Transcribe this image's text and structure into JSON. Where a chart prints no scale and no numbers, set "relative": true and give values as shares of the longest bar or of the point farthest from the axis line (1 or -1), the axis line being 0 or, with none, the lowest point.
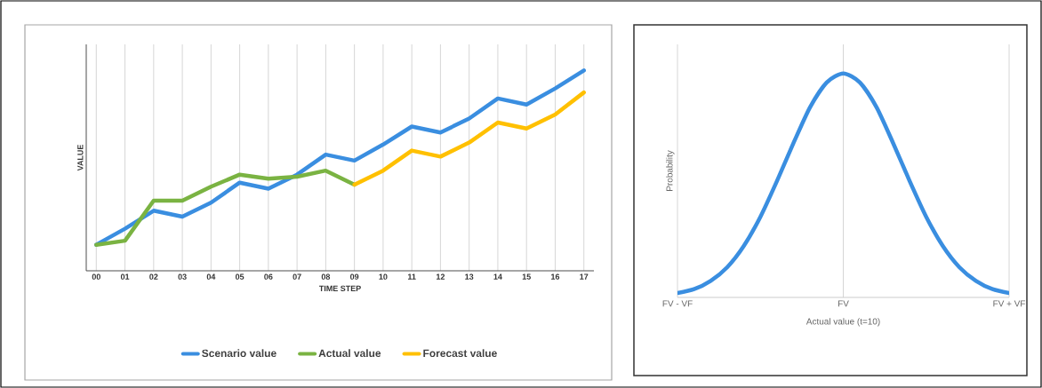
{
  "chart_data": [
    {
      "type": "line",
      "xlabel": "TIME STEP",
      "ylabel": "VALUE",
      "relative": true,
      "grid": "x",
      "legend": "bottom",
      "categories": [
        "00",
        "01",
        "02",
        "03",
        "04",
        "05",
        "06",
        "07",
        "08",
        "09",
        "10",
        "11",
        "12",
        "13",
        "14",
        "15",
        "16",
        "17"
      ],
      "series": [
        {
          "name": "Scenario value",
          "color": "#3a8ee0",
          "values": [
            0.13,
            0.21,
            0.3,
            0.27,
            0.34,
            0.44,
            0.41,
            0.48,
            0.58,
            0.55,
            0.63,
            0.72,
            0.69,
            0.76,
            0.86,
            0.83,
            0.91,
            1
          ]
        },
        {
          "name": "Actual value",
          "color": "#7ab342",
          "values": [
            0.13,
            0.15,
            0.35,
            0.35,
            0.42,
            0.48,
            0.46,
            0.47,
            0.5,
            0.43,
            null,
            null,
            null,
            null,
            null,
            null,
            null,
            null
          ]
        },
        {
          "name": "Forecast value",
          "color": "#ffc000",
          "values": [
            null,
            null,
            null,
            null,
            null,
            null,
            null,
            null,
            null,
            0.43,
            0.5,
            0.6,
            0.57,
            0.64,
            0.74,
            0.71,
            0.78,
            0.89
          ]
        }
      ]
    },
    {
      "type": "line",
      "xlabel": "Actual value (t=10)",
      "ylabel": "Probability",
      "relative": true,
      "grid": "x",
      "categories": [
        "FV - VF",
        null,
        null,
        null,
        null,
        null,
        null,
        null,
        null,
        null,
        "FV",
        null,
        null,
        null,
        null,
        null,
        null,
        null,
        null,
        null,
        "FV + VF"
      ],
      "series": [
        {
          "color": "#3a8ee0",
          "values": [
            0.02,
            0.037,
            0.074,
            0.135,
            0.23,
            0.36,
            0.52,
            0.69,
            0.85,
            0.96,
            1,
            0.96,
            0.85,
            0.69,
            0.52,
            0.36,
            0.23,
            0.135,
            0.074,
            0.037,
            0.02
          ]
        }
      ]
    }
  ]
}
